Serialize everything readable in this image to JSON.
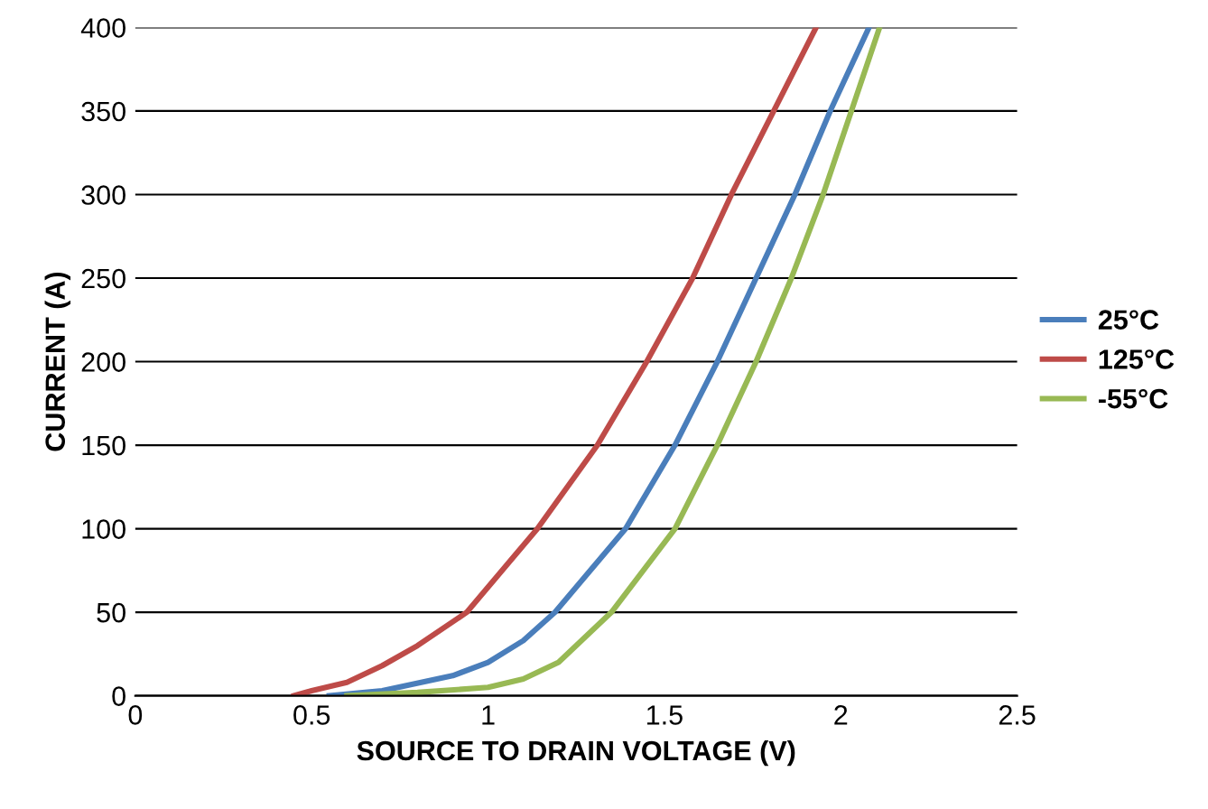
{
  "chart_data": {
    "type": "line",
    "xlabel": "SOURCE TO DRAIN VOLTAGE (V)",
    "ylabel": "CURRENT (A)",
    "xlim": [
      0,
      2.5
    ],
    "xticks": [
      0,
      0.5,
      1,
      1.5,
      2,
      2.5
    ],
    "ylim": [
      0,
      400
    ],
    "yticks": [
      0,
      50,
      100,
      150,
      200,
      250,
      300,
      350,
      400
    ],
    "grid": "y",
    "legend": "right",
    "marker": "none",
    "line_style": "solid",
    "series": [
      {
        "name": "25°C",
        "color": "#4a7ebb",
        "x": [
          0.55,
          0.7,
          0.9,
          1.0,
          1.1,
          1.19,
          1.39,
          1.53,
          1.65,
          1.76,
          1.87,
          1.97,
          2.08
        ],
        "values": [
          0,
          3,
          12,
          20,
          33,
          50,
          100,
          150,
          200,
          250,
          300,
          350,
          400
        ]
      },
      {
        "name": "125°C",
        "color": "#be4b48",
        "x": [
          0.45,
          0.5,
          0.6,
          0.7,
          0.8,
          0.94,
          1.14,
          1.31,
          1.45,
          1.58,
          1.69,
          1.81,
          1.93
        ],
        "values": [
          0,
          3,
          8,
          18,
          30,
          50,
          100,
          150,
          200,
          250,
          300,
          350,
          400
        ]
      },
      {
        "name": "-55°C",
        "color": "#98b954",
        "x": [
          0.6,
          0.8,
          1.0,
          1.1,
          1.2,
          1.35,
          1.53,
          1.65,
          1.76,
          1.86,
          1.95,
          2.03,
          2.11
        ],
        "values": [
          0,
          2,
          5,
          10,
          20,
          50,
          100,
          150,
          200,
          250,
          300,
          350,
          400
        ]
      }
    ]
  }
}
